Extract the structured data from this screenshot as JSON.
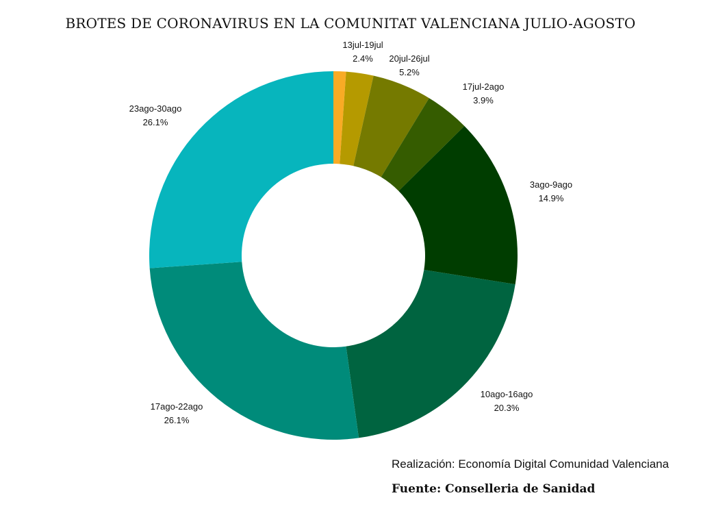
{
  "chart_data": {
    "type": "pie",
    "title": "BROTES DE CORONAVIRUS EN LA COMUNITAT VALENCIANA JULIO-AGOSTO",
    "donut": true,
    "slices": [
      {
        "label": "13jul-19jul",
        "value": 2.4,
        "display": "2.4%",
        "color": "#b59a00"
      },
      {
        "label": "20jul-26jul",
        "value": 5.2,
        "display": "5.2%",
        "color": "#757a00"
      },
      {
        "label": "17jul-2ago",
        "value": 3.9,
        "display": "3.9%",
        "color": "#355c00"
      },
      {
        "label": "3ago-9ago",
        "value": 14.9,
        "display": "14.9%",
        "color": "#003d00"
      },
      {
        "label": "10ago-16ago",
        "value": 20.3,
        "display": "20.3%",
        "color": "#006440"
      },
      {
        "label": "17ago-22ago",
        "value": 26.1,
        "display": "26.1%",
        "color": "#008b7a"
      },
      {
        "label": "23ago-30ago",
        "value": 26.1,
        "display": "26.1%",
        "color": "#07b5bd"
      }
    ],
    "unlabeled_slice": {
      "value": 1.1,
      "color": "#f9ab25"
    }
  },
  "footer": {
    "credit": "Realización: Economía Digital Comunidad Valenciana",
    "source": "Fuente: Conselleria de Sanidad"
  }
}
